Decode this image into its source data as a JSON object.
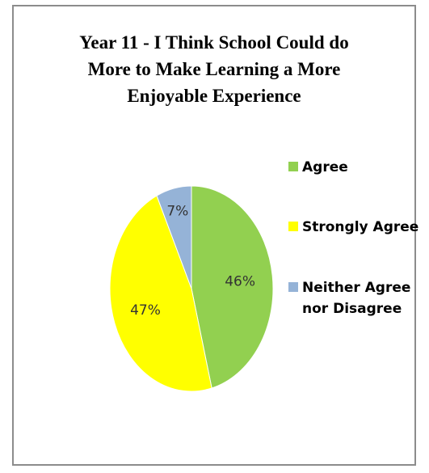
{
  "chart_data": {
    "type": "pie",
    "title_lines": [
      "Year 11 - I Think School Could do",
      "More to Make Learning a More",
      "Enjoyable Experience"
    ],
    "slices": [
      {
        "name": "Agree",
        "value": 46,
        "label": "46%",
        "color": "#92d050"
      },
      {
        "name": "Strongly Agree",
        "value": 47,
        "label": "47%",
        "color": "#ffff00"
      },
      {
        "name": "Neither Agree nor Disagree",
        "value": 7,
        "label": "7%",
        "color": "#95b3d7"
      }
    ],
    "legend": {
      "placement": "right",
      "entries": [
        {
          "lines": [
            "Agree"
          ],
          "color": "#92d050"
        },
        {
          "lines": [
            "Strongly Agree"
          ],
          "color": "#ffff00"
        },
        {
          "lines": [
            "Neither Agree",
            "nor Disagree"
          ],
          "color": "#95b3d7"
        }
      ]
    }
  }
}
